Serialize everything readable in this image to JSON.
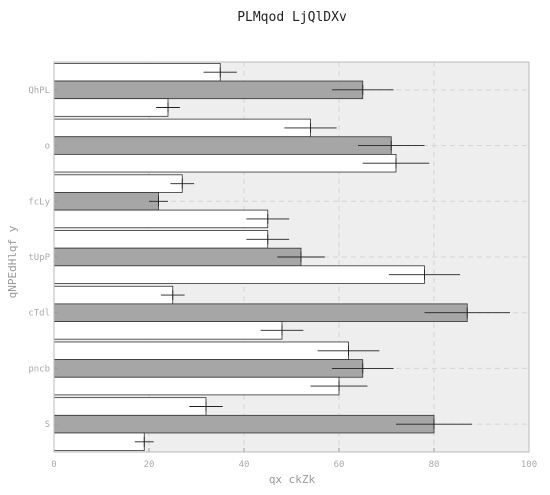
{
  "chart_data": {
    "type": "bar",
    "orientation": "horizontal",
    "title": "PLMqod LjQlDXv",
    "xlabel": "qx ckZk",
    "ylabel": "qNPEdHlqf y",
    "xlim": [
      0,
      100
    ],
    "xticks": [
      "0",
      "20",
      "40",
      "60",
      "80",
      "100"
    ],
    "grid": true,
    "categories": [
      "QhPL",
      "o",
      "fcLy",
      "tUpP",
      "cTdl",
      "pncb",
      "S"
    ],
    "series": [
      {
        "color": "#ffffff",
        "values": [
          35,
          54,
          27,
          45,
          25,
          62,
          32
        ],
        "errors": [
          3.5,
          5.5,
          2.5,
          4.5,
          2.5,
          6.5,
          3.5
        ]
      },
      {
        "color": "#a6a6a6",
        "values": [
          65,
          71,
          22,
          52,
          87,
          65,
          80
        ],
        "errors": [
          6.5,
          7,
          2,
          5,
          9,
          6.5,
          8
        ]
      },
      {
        "color": "#ffffff",
        "values": [
          24,
          72,
          45,
          78,
          48,
          60,
          19
        ],
        "errors": [
          2.5,
          7,
          4.5,
          7.5,
          4.5,
          6,
          2
        ]
      }
    ]
  }
}
